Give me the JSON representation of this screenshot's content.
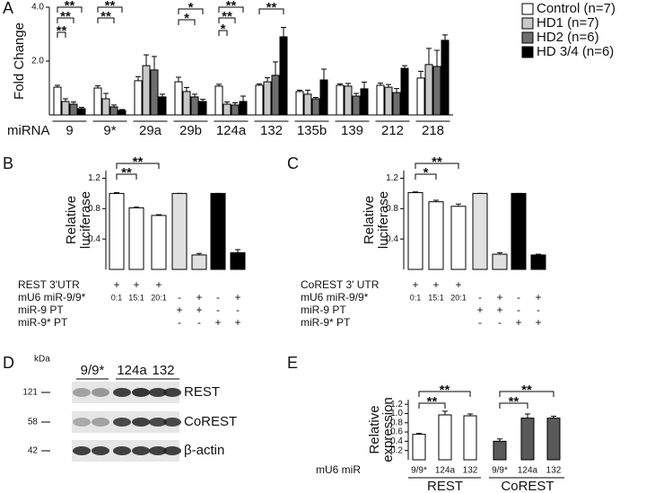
{
  "chart_data": [
    {
      "panel": "A",
      "type": "bar",
      "ylabel": "Fold Change",
      "xlabel": "miRNA",
      "categories": [
        "9",
        "9*",
        "29a",
        "29b",
        "124a",
        "132",
        "135b",
        "139",
        "212",
        "218"
      ],
      "series": [
        {
          "name": "Control (n=7)",
          "color": "#ffffff",
          "values": [
            1.03,
            1.0,
            1.27,
            1.23,
            1.07,
            1.1,
            0.87,
            1.1,
            1.1,
            1.37
          ],
          "errors": [
            0.07,
            0.08,
            0.15,
            0.17,
            0.07,
            0.05,
            0.05,
            0.05,
            0.08,
            0.25
          ]
        },
        {
          "name": "HD1 (n=7)",
          "color": "#c8c8c8",
          "values": [
            0.5,
            0.6,
            1.83,
            0.87,
            0.4,
            1.23,
            0.77,
            1.07,
            1.03,
            1.87
          ],
          "errors": [
            0.1,
            0.2,
            0.4,
            0.15,
            0.08,
            0.15,
            0.15,
            0.1,
            0.1,
            0.6
          ]
        },
        {
          "name": "HD2 (n=6)",
          "color": "#6e6e6e",
          "values": [
            0.4,
            0.3,
            1.67,
            0.67,
            0.37,
            1.47,
            0.6,
            0.7,
            0.83,
            1.8
          ],
          "errors": [
            0.08,
            0.07,
            0.5,
            0.1,
            0.08,
            0.5,
            0.05,
            0.1,
            0.15,
            0.6
          ]
        },
        {
          "name": "HD 3/4 (n=6)",
          "color": "#000000",
          "values": [
            0.23,
            0.17,
            0.67,
            0.5,
            0.5,
            2.9,
            1.3,
            0.97,
            1.73,
            2.77
          ],
          "errors": [
            0.05,
            0.03,
            0.1,
            0.08,
            0.2,
            0.35,
            0.4,
            0.25,
            0.1,
            0.2
          ]
        }
      ],
      "ylim": [
        0,
        4
      ],
      "yticks": [
        {
          "value": 2,
          "label": "2.0"
        },
        {
          "value": 4,
          "label": "4.0"
        }
      ],
      "legend": "upper right",
      "annotations": [
        "**",
        "**",
        "**",
        "**",
        "**",
        "*",
        "*",
        "**",
        "**",
        "*",
        "**"
      ]
    },
    {
      "panel": "B",
      "type": "bar",
      "ylabel": [
        "Relative",
        "luciferase"
      ],
      "values": [
        1.0,
        0.81,
        0.71,
        1.0,
        0.19,
        1.0,
        0.22
      ],
      "errors": [
        0.01,
        0.01,
        0.01,
        0,
        0.02,
        0,
        0.04
      ],
      "colors": [
        "#ffffff",
        "#ffffff",
        "#ffffff",
        "#e0e0e0",
        "#e0e0e0",
        "#000000",
        "#000000"
      ],
      "ylim": [
        0,
        1.3
      ],
      "yticks": [
        0.4,
        0.8,
        1.2
      ],
      "table": [
        {
          "label": "REST 3'UTR",
          "cells": [
            "+",
            "+",
            "+",
            null,
            null,
            null,
            null
          ]
        },
        {
          "label": "mU6 miR-9/9*",
          "cells": [
            "0:1",
            "15:1",
            "20:1",
            "-",
            "+",
            "-",
            "+"
          ]
        },
        {
          "label": "miR-9 PT",
          "cells": [
            null,
            null,
            null,
            "+",
            "+",
            "-",
            "-"
          ]
        },
        {
          "label": "miR-9* PT",
          "cells": [
            null,
            null,
            null,
            "-",
            "-",
            "+",
            "+"
          ]
        }
      ],
      "annotations": [
        "**",
        "**"
      ]
    },
    {
      "panel": "C",
      "type": "bar",
      "ylabel": [
        "Relative",
        "luciferase"
      ],
      "values": [
        1.01,
        0.89,
        0.83,
        1.0,
        0.2,
        1.0,
        0.19
      ],
      "errors": [
        0.01,
        0.02,
        0.03,
        0,
        0.02,
        0,
        0.01
      ],
      "colors": [
        "#ffffff",
        "#ffffff",
        "#ffffff",
        "#e0e0e0",
        "#e0e0e0",
        "#000000",
        "#000000"
      ],
      "ylim": [
        0,
        1.3
      ],
      "yticks": [
        0.4,
        0.8,
        1.2
      ],
      "table": [
        {
          "label": "CoREST 3' UTR",
          "cells": [
            "+",
            "+",
            "+",
            null,
            null,
            null,
            null
          ]
        },
        {
          "label": "mU6 miR-9/9*",
          "cells": [
            "0:1",
            "15:1",
            "20:1",
            "-",
            "+",
            "-",
            "+"
          ]
        },
        {
          "label": "miR-9 PT",
          "cells": [
            null,
            null,
            null,
            "+",
            "+",
            "-",
            "-"
          ]
        },
        {
          "label": "miR-9* PT",
          "cells": [
            null,
            null,
            null,
            "-",
            "-",
            "+",
            "+"
          ]
        }
      ],
      "annotations": [
        "**",
        "*"
      ]
    },
    {
      "panel": "E",
      "type": "grouped-bar",
      "ylabel": [
        "Relative",
        "expression"
      ],
      "xlabel": "mU6 miR",
      "series": [
        {
          "name": "REST",
          "color": "#ffffff",
          "categories": [
            "9/9*",
            "124a",
            "132"
          ],
          "values": [
            0.55,
            0.97,
            0.95
          ],
          "errors": [
            0.02,
            0.08,
            0.04
          ]
        },
        {
          "name": "CoREST",
          "color": "#595959",
          "categories": [
            "9/9*",
            "124a",
            "132"
          ],
          "values": [
            0.4,
            0.9,
            0.9
          ],
          "errors": [
            0.05,
            0.09,
            0.04
          ]
        }
      ],
      "ylim": [
        0,
        1.3
      ],
      "yticks": [
        0.2,
        0.4,
        0.6,
        0.8,
        {
          "value": 1,
          "label": "1.0"
        },
        1.2
      ],
      "annotations": [
        "**",
        "**",
        "**",
        "**"
      ]
    }
  ],
  "blot": {
    "panel": "D",
    "unit": "kDa",
    "lanes": [
      "9/9*",
      "124a",
      "132"
    ],
    "rows": [
      {
        "size": "121",
        "label": "REST"
      },
      {
        "size": "58",
        "label": "CoREST"
      },
      {
        "size": "42",
        "label": "β-actin"
      }
    ]
  }
}
